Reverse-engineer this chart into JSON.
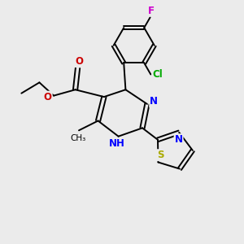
{
  "background_color": "#ebebeb",
  "bond_color": "#000000",
  "N_color": "#0000ff",
  "O_color": "#cc0000",
  "S_color": "#aaaa00",
  "F_color": "#cc00cc",
  "Cl_color": "#00aa00",
  "figsize": [
    3.0,
    3.0
  ],
  "dpi": 100,
  "xlim": [
    0,
    10
  ],
  "ylim": [
    0,
    10
  ]
}
